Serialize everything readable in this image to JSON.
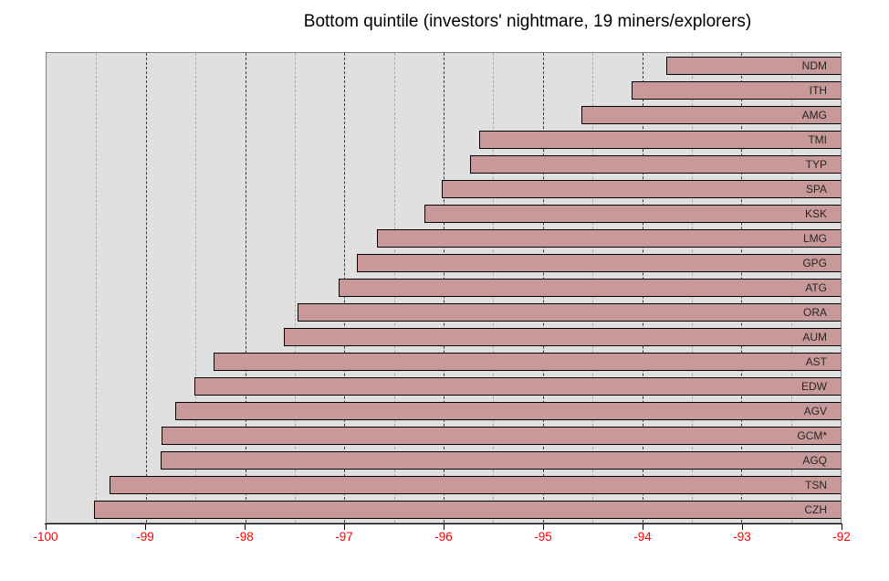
{
  "title": "Bottom quintile (investors' nightmare, 19 miners/explorers)",
  "colors": {
    "page_bg": "#ffffff",
    "title_color": "#000000",
    "plot_bg": "#e0e0e0",
    "plot_border": "#808080",
    "bar_fill": "#c9999a",
    "bar_border": "#000000",
    "bar_label": "#262626",
    "axis_line": "#000000",
    "tick_label": "#ff0000",
    "major_grid": "#3a3a3a",
    "minor_grid": "#aaaaaa"
  },
  "chart_data": {
    "type": "bar",
    "orientation": "horizontal",
    "title": "Bottom quintile (investors' nightmare, 19 miners/explorers)",
    "categories": [
      "NDM",
      "ITH",
      "AMG",
      "TMI",
      "TYP",
      "SPA",
      "KSK",
      "LMG",
      "GPG",
      "ATG",
      "ORA",
      "AUM",
      "AST",
      "EDW",
      "AGV",
      "GCM*",
      "AGQ",
      "TSN",
      "CZH"
    ],
    "values": [
      -93.76,
      -94.11,
      -94.61,
      -95.64,
      -95.73,
      -96.02,
      -96.19,
      -96.67,
      -96.87,
      -97.06,
      -97.47,
      -97.61,
      -98.32,
      -98.51,
      -98.7,
      -98.84,
      -98.85,
      -99.37,
      -99.52
    ],
    "xlabel": "",
    "ylabel": "",
    "xlim": [
      -100,
      -92
    ],
    "bars_anchored_at": -92,
    "x_ticks": [
      -100,
      -99,
      -98,
      -97,
      -96,
      -95,
      -94,
      -93,
      -92
    ],
    "x_tick_labels": [
      "-100",
      "-99",
      "-98",
      "-97",
      "-96",
      "-95",
      "-94",
      "-93",
      "-92"
    ],
    "major_gridlines": [
      -99,
      -98,
      -97,
      -96,
      -95,
      -94,
      -93
    ],
    "minor_gridlines": [
      -99.5,
      -98.5,
      -97.5,
      -96.5,
      -95.5,
      -94.5,
      -93.5,
      -92.5
    ],
    "grid_style": "vertical dashed; major lines dark at integers, minor lines light gray at half units",
    "legend": "none",
    "tick_label_side": "bottom",
    "value_labels": "category tickers shown inside right end of each bar"
  }
}
